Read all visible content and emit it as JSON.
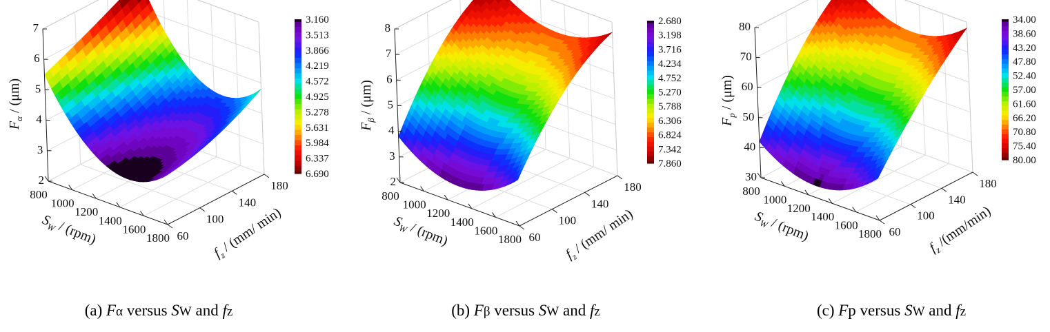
{
  "chart_data": [
    {
      "type": "surface",
      "caption": [
        {
          "t": "(a) ",
          "s": ""
        },
        {
          "t": "F",
          "s": "it"
        },
        {
          "t": "α",
          "s": "sub"
        },
        {
          "t": " versus ",
          "s": ""
        },
        {
          "t": "S",
          "s": "it"
        },
        {
          "t": "W",
          "s": "sub"
        },
        {
          "t": " and ",
          "s": ""
        },
        {
          "t": "f",
          "s": "it"
        },
        {
          "t": "z",
          "s": "sub"
        }
      ],
      "xlabel": {
        "main": "S",
        "sub": "W",
        "rest": " / (rpm)"
      },
      "ylabel": {
        "main": "f",
        "sub": "z",
        "rest": " / (mm/ min)"
      },
      "zlabel": {
        "main": "F",
        "sub": "α",
        "rest": " / (μm)"
      },
      "x_ticks": [
        800,
        1000,
        1200,
        1400,
        1600,
        1800
      ],
      "y_ticks": [
        60,
        100,
        140,
        180
      ],
      "z_ticks": [
        2,
        3,
        4,
        5,
        6,
        7
      ],
      "xlim": [
        800,
        1800
      ],
      "ylim": [
        60,
        180
      ],
      "zlim": [
        2,
        7
      ],
      "colorbar_ticks": [
        "3.160",
        "3.513",
        "3.866",
        "4.219",
        "4.572",
        "4.925",
        "5.278",
        "5.631",
        "5.984",
        "6.337",
        "6.690"
      ],
      "color_range": [
        3.16,
        6.69
      ],
      "z_grid_estimate": {
        "x": [
          800,
          1300,
          1800
        ],
        "y": [
          60,
          120,
          180
        ],
        "z": [
          [
            5.5,
            6.2,
            7.0
          ],
          [
            3.2,
            3.6,
            4.3
          ],
          [
            3.6,
            4.0,
            4.8
          ]
        ]
      }
    },
    {
      "type": "surface",
      "caption": [
        {
          "t": "(b) ",
          "s": ""
        },
        {
          "t": "F",
          "s": "it"
        },
        {
          "t": "β",
          "s": "sub"
        },
        {
          "t": " versus ",
          "s": ""
        },
        {
          "t": "S",
          "s": "it"
        },
        {
          "t": "W",
          "s": "sub"
        },
        {
          "t": " and ",
          "s": ""
        },
        {
          "t": "f",
          "s": "it"
        },
        {
          "t": "z",
          "s": "sub"
        }
      ],
      "xlabel": {
        "main": "S",
        "sub": "W",
        "rest": " / (rpm)"
      },
      "ylabel": {
        "main": "f",
        "sub": "z",
        "rest": " / (mm/ min)"
      },
      "zlabel": {
        "main": "F",
        "sub": "β",
        "rest": " / (μm)"
      },
      "x_ticks": [
        800,
        1000,
        1200,
        1400,
        1600,
        1800
      ],
      "y_ticks": [
        60,
        100,
        140,
        180
      ],
      "z_ticks": [
        2,
        3,
        4,
        5,
        6,
        7,
        8
      ],
      "xlim": [
        800,
        1800
      ],
      "ylim": [
        60,
        180
      ],
      "zlim": [
        2,
        8
      ],
      "colorbar_ticks": [
        "2.680",
        "3.198",
        "3.716",
        "4.234",
        "4.752",
        "5.270",
        "5.788",
        "6.306",
        "6.824",
        "7.342",
        "7.860"
      ],
      "color_range": [
        2.68,
        7.86
      ],
      "z_grid_estimate": {
        "x": [
          800,
          1300,
          1800
        ],
        "y": [
          60,
          120,
          180
        ],
        "z": [
          [
            3.8,
            6.6,
            7.9
          ],
          [
            2.7,
            5.5,
            6.8
          ],
          [
            3.8,
            6.3,
            7.6
          ]
        ]
      }
    },
    {
      "type": "surface",
      "caption": [
        {
          "t": "(c) ",
          "s": ""
        },
        {
          "t": "F",
          "s": "it"
        },
        {
          "t": "p versus ",
          "s": ""
        },
        {
          "t": "S",
          "s": "it"
        },
        {
          "t": "W",
          "s": "sub"
        },
        {
          "t": " and ",
          "s": ""
        },
        {
          "t": "f",
          "s": "it"
        },
        {
          "t": "z",
          "s": "sub"
        }
      ],
      "xlabel": {
        "main": "S",
        "sub": "W",
        "rest": " / (rpm)"
      },
      "ylabel": {
        "main": "f",
        "sub": "z",
        "rest": " /(mm/min)"
      },
      "zlabel": {
        "main": "F",
        "sub": "p",
        "rest": " / (μm)"
      },
      "x_ticks": [
        800,
        1000,
        1200,
        1400,
        1600,
        1800
      ],
      "y_ticks": [
        60,
        100,
        140,
        180
      ],
      "z_ticks": [
        30,
        40,
        50,
        60,
        70,
        80
      ],
      "xlim": [
        800,
        1800
      ],
      "ylim": [
        60,
        180
      ],
      "zlim": [
        30,
        80
      ],
      "colorbar_ticks": [
        "34.00",
        "38.60",
        "43.20",
        "47.80",
        "52.40",
        "57.00",
        "61.60",
        "66.20",
        "70.80",
        "75.40",
        "80.00"
      ],
      "color_range": [
        34,
        80
      ],
      "z_grid_estimate": {
        "x": [
          800,
          1300,
          1800
        ],
        "y": [
          60,
          120,
          180
        ],
        "z": [
          [
            42,
            66,
            80
          ],
          [
            34,
            57,
            70
          ],
          [
            44,
            63,
            78
          ]
        ]
      }
    }
  ]
}
